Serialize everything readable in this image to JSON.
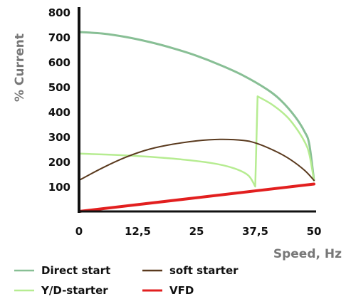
{
  "chart_data": {
    "type": "line",
    "xlabel": "Speed, Hz",
    "ylabel": "% Current",
    "xlim": [
      0,
      50
    ],
    "ylim": [
      0,
      800
    ],
    "x_ticks": [
      "0",
      "12,5",
      "25",
      "37,5",
      "50"
    ],
    "y_ticks": [
      "100",
      "200",
      "300",
      "400",
      "500",
      "600",
      "700",
      "800"
    ],
    "grid": false,
    "legend_position": "bottom",
    "series": [
      {
        "name": "Direct start",
        "color": "#88bf95",
        "points": [
          [
            0,
            720
          ],
          [
            5,
            714
          ],
          [
            10,
            700
          ],
          [
            15,
            680
          ],
          [
            20,
            655
          ],
          [
            25,
            625
          ],
          [
            30,
            588
          ],
          [
            35,
            545
          ],
          [
            40,
            490
          ],
          [
            43,
            445
          ],
          [
            46,
            380
          ],
          [
            48,
            320
          ],
          [
            49,
            270
          ],
          [
            50,
            125
          ]
        ]
      },
      {
        "name": "Y/D-starter",
        "color": "#b6ec91",
        "points": [
          [
            0,
            232
          ],
          [
            10,
            225
          ],
          [
            20,
            212
          ],
          [
            28,
            195
          ],
          [
            33,
            173
          ],
          [
            36,
            145
          ],
          [
            37.5,
            100
          ],
          [
            38,
            462
          ],
          [
            41,
            430
          ],
          [
            44,
            385
          ],
          [
            46,
            340
          ],
          [
            48,
            280
          ],
          [
            49,
            230
          ],
          [
            50,
            125
          ]
        ]
      },
      {
        "name": "soft starter",
        "color": "#5a3a1e",
        "points": [
          [
            0,
            125
          ],
          [
            5,
            175
          ],
          [
            10,
            218
          ],
          [
            15,
            250
          ],
          [
            20,
            270
          ],
          [
            25,
            283
          ],
          [
            30,
            289
          ],
          [
            35,
            285
          ],
          [
            38,
            272
          ],
          [
            42,
            240
          ],
          [
            45,
            208
          ],
          [
            48,
            165
          ],
          [
            50,
            125
          ]
        ]
      },
      {
        "name": "VFD",
        "color": "#e21f1f",
        "points": [
          [
            0,
            0
          ],
          [
            50,
            110
          ]
        ]
      }
    ]
  }
}
